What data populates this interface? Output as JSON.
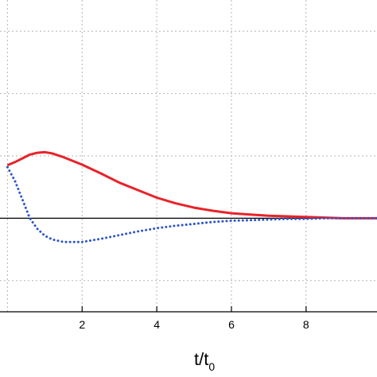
{
  "chart_data": {
    "type": "line",
    "title": "",
    "xlabel": "t/t",
    "xlabel_subscript": "0",
    "ylabel": "",
    "xlim": [
      -0.2,
      9.9
    ],
    "ylim": [
      -1.5,
      3.5
    ],
    "x_ticks": [
      "2",
      "4",
      "6",
      "8"
    ],
    "x_tick_values": [
      2,
      4,
      6,
      8
    ],
    "grid": true,
    "zero_line": true,
    "series": [
      {
        "style": "solid",
        "color": "#e8232a",
        "x": [
          0.0,
          0.2,
          0.4,
          0.6,
          0.8,
          1.0,
          1.2,
          1.5,
          2.0,
          2.5,
          3.0,
          3.5,
          4.0,
          4.5,
          5.0,
          5.5,
          6.0,
          6.5,
          7.0,
          7.5,
          8.0,
          8.5,
          9.0,
          9.9
        ],
        "y": [
          0.85,
          0.9,
          0.96,
          1.02,
          1.05,
          1.06,
          1.04,
          0.98,
          0.86,
          0.72,
          0.57,
          0.45,
          0.33,
          0.24,
          0.17,
          0.12,
          0.08,
          0.06,
          0.04,
          0.03,
          0.02,
          0.01,
          0.0,
          0.0
        ]
      },
      {
        "style": "dotted",
        "color": "#2f57c9",
        "x": [
          0.0,
          0.2,
          0.4,
          0.6,
          0.8,
          1.0,
          1.2,
          1.5,
          2.0,
          2.5,
          3.0,
          3.5,
          4.0,
          4.5,
          5.0,
          5.5,
          6.0,
          6.5,
          7.0,
          7.5,
          8.0,
          8.5,
          9.0,
          9.9
        ],
        "y": [
          0.82,
          0.6,
          0.3,
          0.0,
          -0.17,
          -0.28,
          -0.34,
          -0.38,
          -0.38,
          -0.33,
          -0.27,
          -0.21,
          -0.16,
          -0.12,
          -0.09,
          -0.06,
          -0.04,
          -0.03,
          -0.02,
          -0.01,
          -0.01,
          0.0,
          0.0,
          0.0
        ]
      }
    ]
  }
}
